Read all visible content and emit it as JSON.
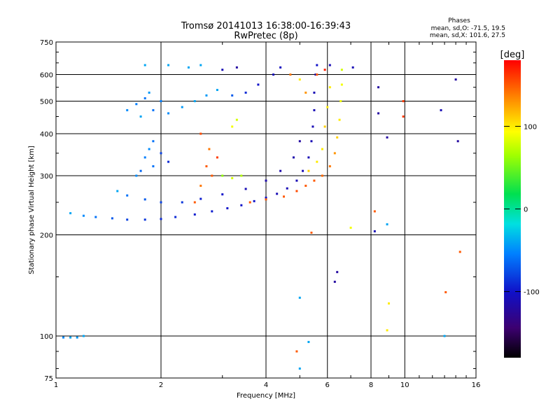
{
  "chart_data": {
    "type": "scatter",
    "title": "Tromsø 20141013 16:38:00-16:39:43",
    "subtitle": "RwPretec (8p)",
    "xlabel": "Frequency [MHz]",
    "ylabel": "Stationary phase Virtual Height [km]",
    "xscale": "log",
    "yscale": "log",
    "xlim": [
      1,
      16
    ],
    "ylim": [
      75,
      750
    ],
    "xticks": [
      1,
      2,
      4,
      6,
      8,
      10,
      16
    ],
    "yticks": [
      75,
      100,
      200,
      300,
      400,
      500,
      600,
      750
    ],
    "grid": true,
    "colorbar": {
      "title": "[deg]",
      "range": [
        -180,
        180
      ],
      "ticks": [
        100,
        0,
        -100
      ],
      "colormap": "rainbow"
    },
    "stats": {
      "heading": "Phases",
      "line1": "mean, sd,O: -71.5, 19.5",
      "line2": "mean, sd,X: 101.6, 27.5"
    },
    "series": [
      {
        "points": [
          {
            "x": 1.05,
            "y": 99,
            "phase": -50
          },
          {
            "x": 1.1,
            "y": 99,
            "phase": -40
          },
          {
            "x": 1.15,
            "y": 99,
            "phase": -45
          },
          {
            "x": 1.2,
            "y": 100,
            "phase": -40
          },
          {
            "x": 1.1,
            "y": 232,
            "phase": -40
          },
          {
            "x": 1.2,
            "y": 228,
            "phase": -50
          },
          {
            "x": 1.3,
            "y": 226,
            "phase": -60
          },
          {
            "x": 1.45,
            "y": 224,
            "phase": -70
          },
          {
            "x": 1.6,
            "y": 222,
            "phase": -80
          },
          {
            "x": 1.8,
            "y": 222,
            "phase": -85
          },
          {
            "x": 2.0,
            "y": 223,
            "phase": -90
          },
          {
            "x": 2.2,
            "y": 226,
            "phase": -90
          },
          {
            "x": 2.5,
            "y": 230,
            "phase": -95
          },
          {
            "x": 2.8,
            "y": 235,
            "phase": -95
          },
          {
            "x": 3.1,
            "y": 240,
            "phase": -100
          },
          {
            "x": 3.4,
            "y": 245,
            "phase": -100
          },
          {
            "x": 3.7,
            "y": 252,
            "phase": -100
          },
          {
            "x": 4.0,
            "y": 258,
            "phase": -100
          },
          {
            "x": 4.3,
            "y": 265,
            "phase": -110
          },
          {
            "x": 4.6,
            "y": 275,
            "phase": -110
          },
          {
            "x": 4.9,
            "y": 290,
            "phase": -110
          },
          {
            "x": 5.1,
            "y": 310,
            "phase": -110
          },
          {
            "x": 5.3,
            "y": 340,
            "phase": -110
          },
          {
            "x": 5.4,
            "y": 380,
            "phase": -110
          },
          {
            "x": 5.45,
            "y": 420,
            "phase": -110
          },
          {
            "x": 5.5,
            "y": 470,
            "phase": -110
          },
          {
            "x": 5.5,
            "y": 530,
            "phase": -110
          },
          {
            "x": 5.55,
            "y": 600,
            "phase": -110
          },
          {
            "x": 1.5,
            "y": 270,
            "phase": -40
          },
          {
            "x": 1.6,
            "y": 262,
            "phase": -60
          },
          {
            "x": 1.8,
            "y": 255,
            "phase": -70
          },
          {
            "x": 2.0,
            "y": 250,
            "phase": -80
          },
          {
            "x": 2.3,
            "y": 250,
            "phase": -85
          },
          {
            "x": 2.6,
            "y": 256,
            "phase": -95
          },
          {
            "x": 3.0,
            "y": 264,
            "phase": -100
          },
          {
            "x": 3.5,
            "y": 274,
            "phase": -110
          },
          {
            "x": 4.0,
            "y": 290,
            "phase": -115
          },
          {
            "x": 4.4,
            "y": 310,
            "phase": -115
          },
          {
            "x": 4.8,
            "y": 340,
            "phase": -115
          },
          {
            "x": 5.0,
            "y": 380,
            "phase": -120
          },
          {
            "x": 1.9,
            "y": 320,
            "phase": -60
          },
          {
            "x": 1.8,
            "y": 340,
            "phase": -55
          },
          {
            "x": 1.85,
            "y": 360,
            "phase": -50
          },
          {
            "x": 1.9,
            "y": 380,
            "phase": -60
          },
          {
            "x": 1.75,
            "y": 310,
            "phase": -65
          },
          {
            "x": 1.7,
            "y": 300,
            "phase": -50
          },
          {
            "x": 2.0,
            "y": 350,
            "phase": -80
          },
          {
            "x": 2.1,
            "y": 330,
            "phase": -90
          },
          {
            "x": 1.6,
            "y": 470,
            "phase": -50
          },
          {
            "x": 1.7,
            "y": 490,
            "phase": -55
          },
          {
            "x": 1.8,
            "y": 510,
            "phase": -60
          },
          {
            "x": 1.9,
            "y": 470,
            "phase": -60
          },
          {
            "x": 2.0,
            "y": 500,
            "phase": -55
          },
          {
            "x": 1.75,
            "y": 450,
            "phase": -40
          },
          {
            "x": 1.85,
            "y": 530,
            "phase": -45
          },
          {
            "x": 2.1,
            "y": 460,
            "phase": -50
          },
          {
            "x": 2.3,
            "y": 480,
            "phase": -45
          },
          {
            "x": 2.5,
            "y": 500,
            "phase": -40
          },
          {
            "x": 2.7,
            "y": 520,
            "phase": -45
          },
          {
            "x": 2.9,
            "y": 540,
            "phase": -40
          },
          {
            "x": 3.2,
            "y": 520,
            "phase": -70
          },
          {
            "x": 3.5,
            "y": 530,
            "phase": -90
          },
          {
            "x": 3.8,
            "y": 560,
            "phase": -100
          },
          {
            "x": 4.2,
            "y": 600,
            "phase": -110
          },
          {
            "x": 4.4,
            "y": 630,
            "phase": -105
          },
          {
            "x": 3.0,
            "y": 620,
            "phase": -110
          },
          {
            "x": 3.3,
            "y": 630,
            "phase": -120
          },
          {
            "x": 1.8,
            "y": 640,
            "phase": -40
          },
          {
            "x": 2.1,
            "y": 640,
            "phase": -40
          },
          {
            "x": 2.4,
            "y": 630,
            "phase": -40
          },
          {
            "x": 2.6,
            "y": 640,
            "phase": -40
          },
          {
            "x": 2.5,
            "y": 250,
            "phase": 150
          },
          {
            "x": 2.6,
            "y": 280,
            "phase": 140
          },
          {
            "x": 2.7,
            "y": 320,
            "phase": 150
          },
          {
            "x": 2.75,
            "y": 360,
            "phase": 140
          },
          {
            "x": 2.8,
            "y": 300,
            "phase": 150
          },
          {
            "x": 2.9,
            "y": 340,
            "phase": 160
          },
          {
            "x": 2.6,
            "y": 400,
            "phase": 155
          },
          {
            "x": 3.0,
            "y": 300,
            "phase": 60
          },
          {
            "x": 3.2,
            "y": 295,
            "phase": 80
          },
          {
            "x": 3.4,
            "y": 300,
            "phase": 70
          },
          {
            "x": 3.2,
            "y": 420,
            "phase": 90
          },
          {
            "x": 3.3,
            "y": 440,
            "phase": 80
          },
          {
            "x": 3.6,
            "y": 250,
            "phase": 150
          },
          {
            "x": 4.0,
            "y": 255,
            "phase": 150
          },
          {
            "x": 4.5,
            "y": 260,
            "phase": 150
          },
          {
            "x": 4.9,
            "y": 270,
            "phase": 155
          },
          {
            "x": 5.2,
            "y": 280,
            "phase": 150
          },
          {
            "x": 5.5,
            "y": 290,
            "phase": 150
          },
          {
            "x": 5.8,
            "y": 300,
            "phase": 145
          },
          {
            "x": 6.1,
            "y": 320,
            "phase": 140
          },
          {
            "x": 6.3,
            "y": 350,
            "phase": 130
          },
          {
            "x": 6.4,
            "y": 390,
            "phase": 110
          },
          {
            "x": 6.5,
            "y": 440,
            "phase": 100
          },
          {
            "x": 6.55,
            "y": 500,
            "phase": 90
          },
          {
            "x": 6.6,
            "y": 560,
            "phase": 90
          },
          {
            "x": 6.6,
            "y": 620,
            "phase": 80
          },
          {
            "x": 5.3,
            "y": 310,
            "phase": 110
          },
          {
            "x": 5.6,
            "y": 330,
            "phase": 100
          },
          {
            "x": 5.8,
            "y": 360,
            "phase": 100
          },
          {
            "x": 5.9,
            "y": 420,
            "phase": 110
          },
          {
            "x": 6.0,
            "y": 480,
            "phase": 100
          },
          {
            "x": 6.1,
            "y": 550,
            "phase": 100
          },
          {
            "x": 5.6,
            "y": 600,
            "phase": 150
          },
          {
            "x": 5.2,
            "y": 530,
            "phase": 130
          },
          {
            "x": 4.7,
            "y": 600,
            "phase": 140
          },
          {
            "x": 5.0,
            "y": 580,
            "phase": 100
          },
          {
            "x": 5.9,
            "y": 620,
            "phase": 170
          },
          {
            "x": 5.6,
            "y": 640,
            "phase": -100
          },
          {
            "x": 6.1,
            "y": 640,
            "phase": -110
          },
          {
            "x": 7.1,
            "y": 630,
            "phase": -110
          },
          {
            "x": 4.9,
            "y": 90,
            "phase": 150
          },
          {
            "x": 5.0,
            "y": 80,
            "phase": -40
          },
          {
            "x": 5.0,
            "y": 130,
            "phase": -40
          },
          {
            "x": 5.3,
            "y": 96,
            "phase": -40
          },
          {
            "x": 5.4,
            "y": 203,
            "phase": 150
          },
          {
            "x": 6.4,
            "y": 155,
            "phase": -120
          },
          {
            "x": 6.3,
            "y": 145,
            "phase": -120
          },
          {
            "x": 8.2,
            "y": 235,
            "phase": 150
          },
          {
            "x": 8.2,
            "y": 205,
            "phase": -110
          },
          {
            "x": 8.4,
            "y": 550,
            "phase": -120
          },
          {
            "x": 8.4,
            "y": 460,
            "phase": -120
          },
          {
            "x": 8.9,
            "y": 390,
            "phase": -120
          },
          {
            "x": 8.9,
            "y": 215,
            "phase": -40
          },
          {
            "x": 9.0,
            "y": 125,
            "phase": 100
          },
          {
            "x": 8.9,
            "y": 104,
            "phase": 100
          },
          {
            "x": 9.9,
            "y": 500,
            "phase": 160
          },
          {
            "x": 9.9,
            "y": 450,
            "phase": 160
          },
          {
            "x": 12.7,
            "y": 470,
            "phase": -110
          },
          {
            "x": 13.0,
            "y": 100,
            "phase": -40
          },
          {
            "x": 13.1,
            "y": 135,
            "phase": 150
          },
          {
            "x": 14.0,
            "y": 580,
            "phase": -120
          },
          {
            "x": 14.2,
            "y": 380,
            "phase": -120
          },
          {
            "x": 14.4,
            "y": 178,
            "phase": 150
          },
          {
            "x": 7.0,
            "y": 210,
            "phase": 90
          }
        ]
      }
    ]
  }
}
